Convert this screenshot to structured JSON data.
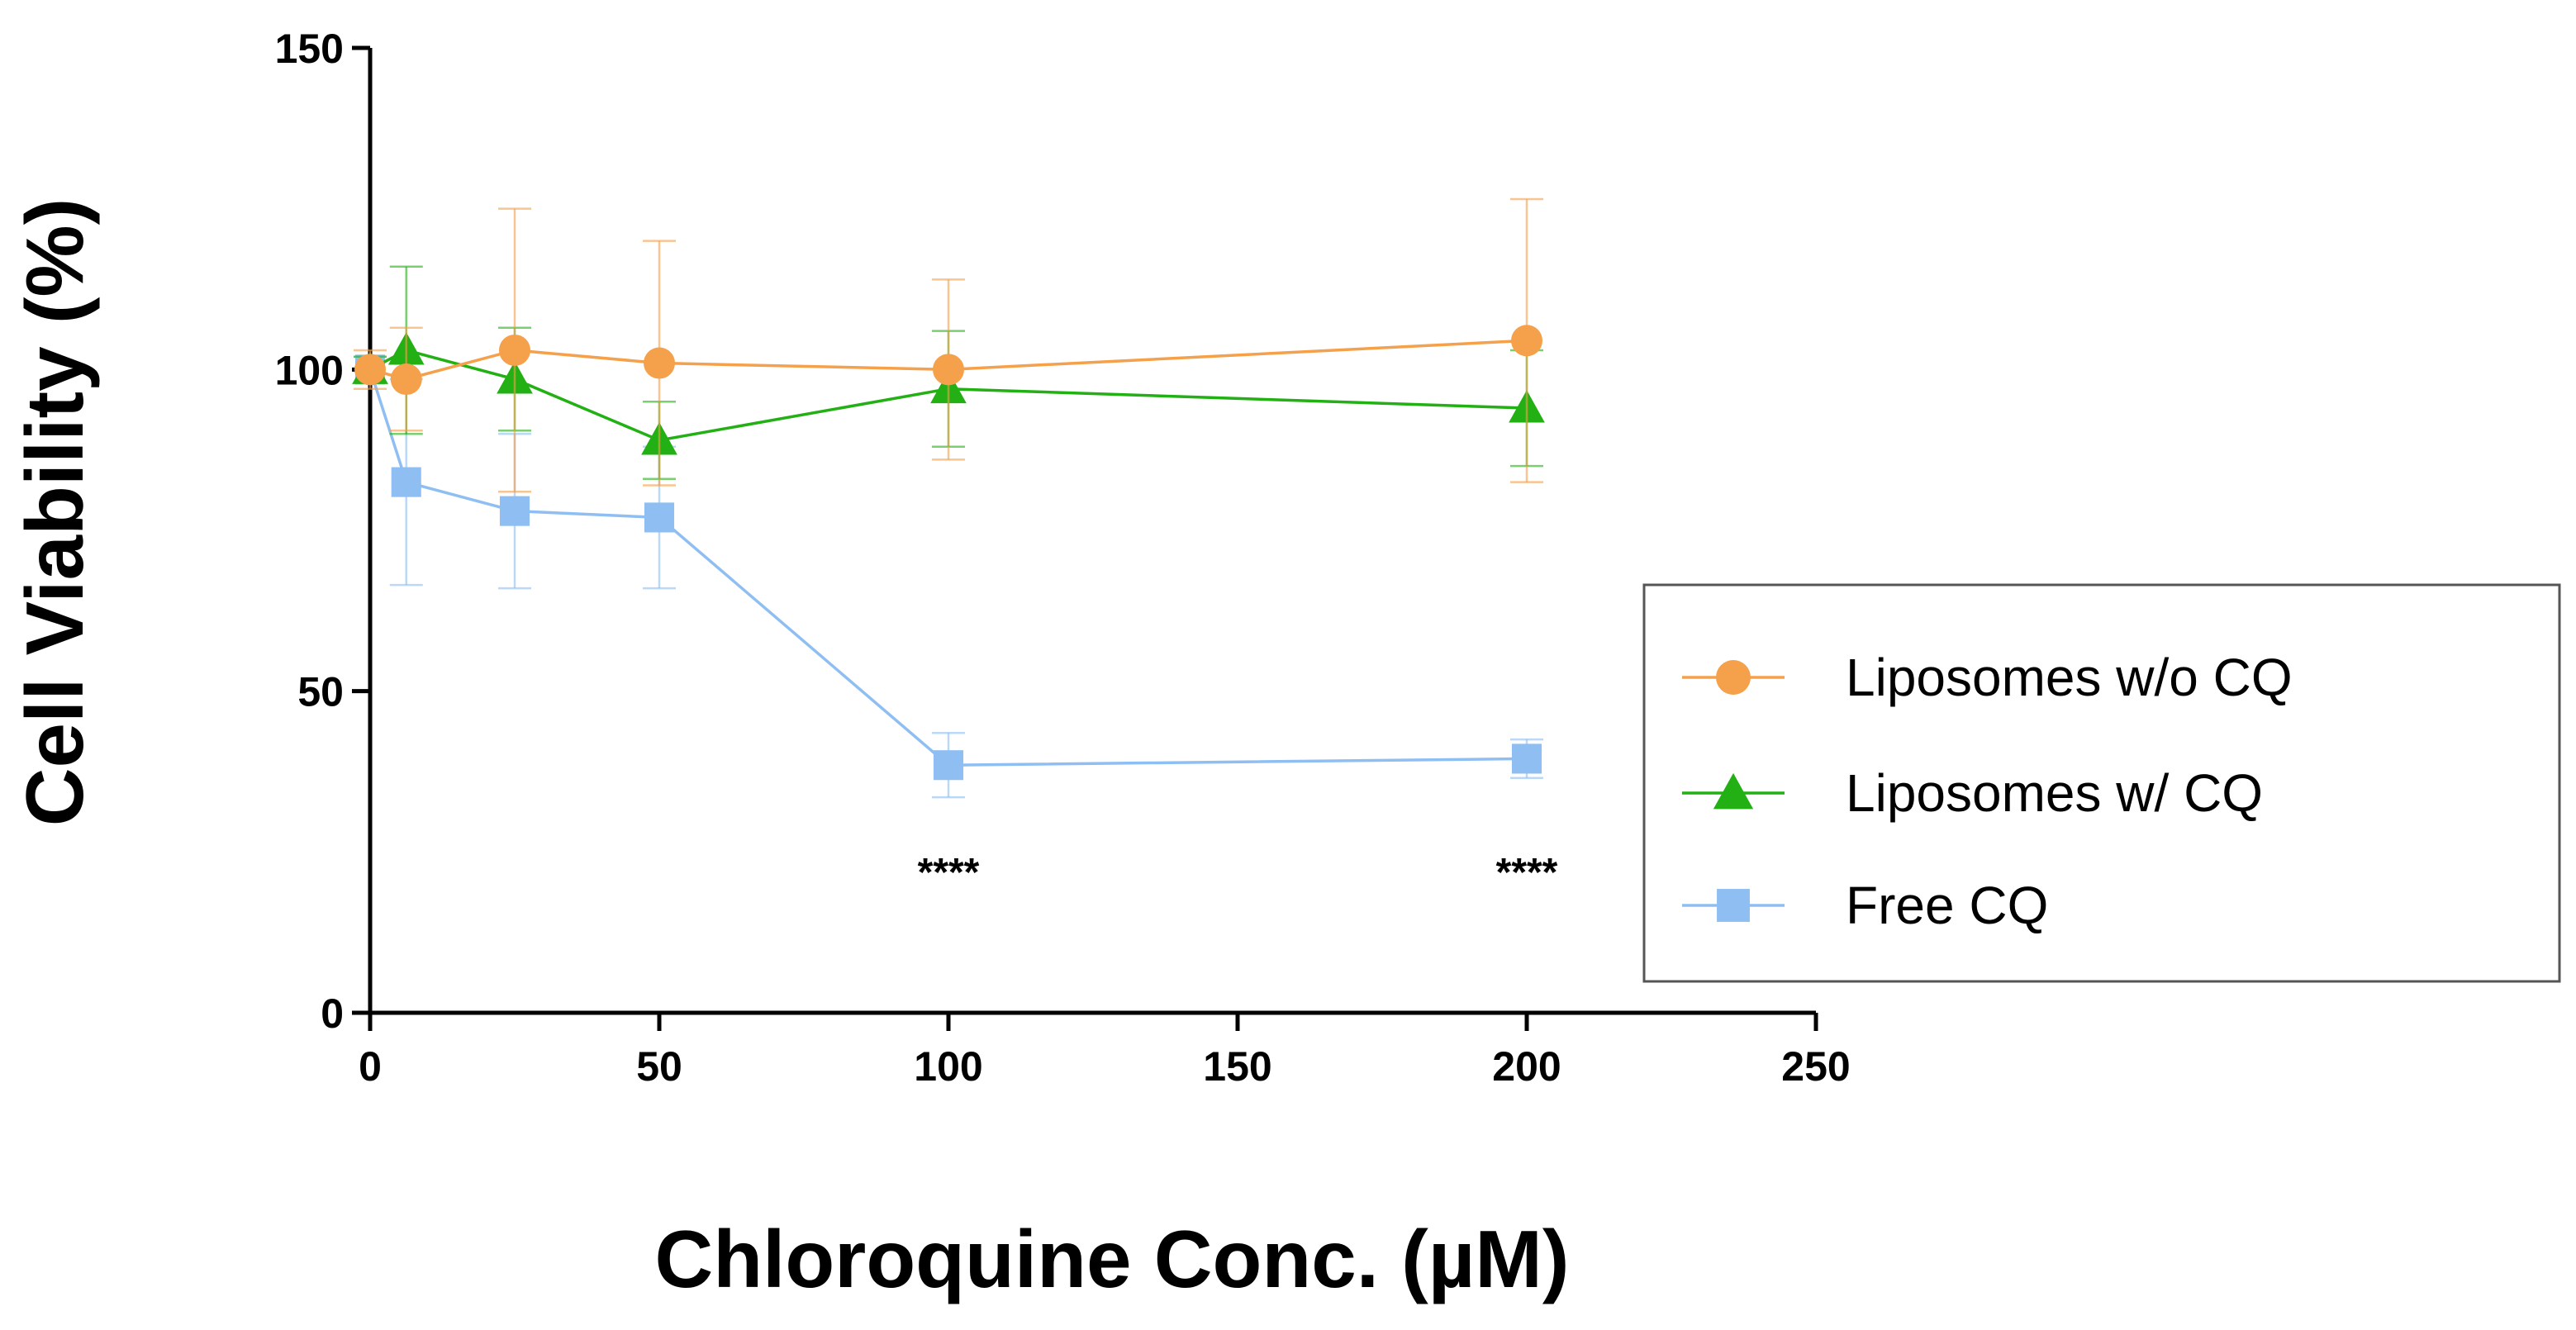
{
  "chart_data": {
    "type": "line",
    "xlabel": "Chloroquine Conc. (µM)",
    "ylabel": "Cell Viability (%)",
    "xlim": [
      0,
      250
    ],
    "ylim": [
      0,
      150
    ],
    "xticks": [
      "0",
      "50",
      "100",
      "150",
      "200",
      "250"
    ],
    "yticks": [
      "0",
      "50",
      "100",
      "150"
    ],
    "grid": false,
    "legend_position": "right",
    "series": [
      {
        "name": "Liposomes w/o CQ",
        "color": "#f5a04a",
        "marker": "circle",
        "x": [
          0,
          6.25,
          25,
          50,
          100,
          200
        ],
        "y": [
          100,
          98.5,
          103,
          101,
          100,
          104.5
        ],
        "error": [
          3,
          8,
          22,
          19,
          14,
          22
        ]
      },
      {
        "name": "Liposomes w/ CQ",
        "color": "#22b014",
        "marker": "triangle",
        "x": [
          0,
          6.25,
          25,
          50,
          100,
          200
        ],
        "y": [
          100,
          103,
          98.5,
          89,
          97,
          94
        ],
        "error": [
          2,
          13,
          8,
          6,
          9,
          9
        ]
      },
      {
        "name": "Free CQ",
        "color": "#8fbff2",
        "marker": "square",
        "x": [
          0,
          6.25,
          25,
          50,
          100,
          200
        ],
        "y": [
          100,
          82.5,
          78,
          77,
          38.5,
          39.5
        ],
        "error": [
          2,
          16,
          12,
          11,
          5,
          3
        ]
      }
    ],
    "annotations": [
      {
        "x": 100,
        "text": "****"
      },
      {
        "x": 200,
        "text": "****"
      }
    ]
  }
}
